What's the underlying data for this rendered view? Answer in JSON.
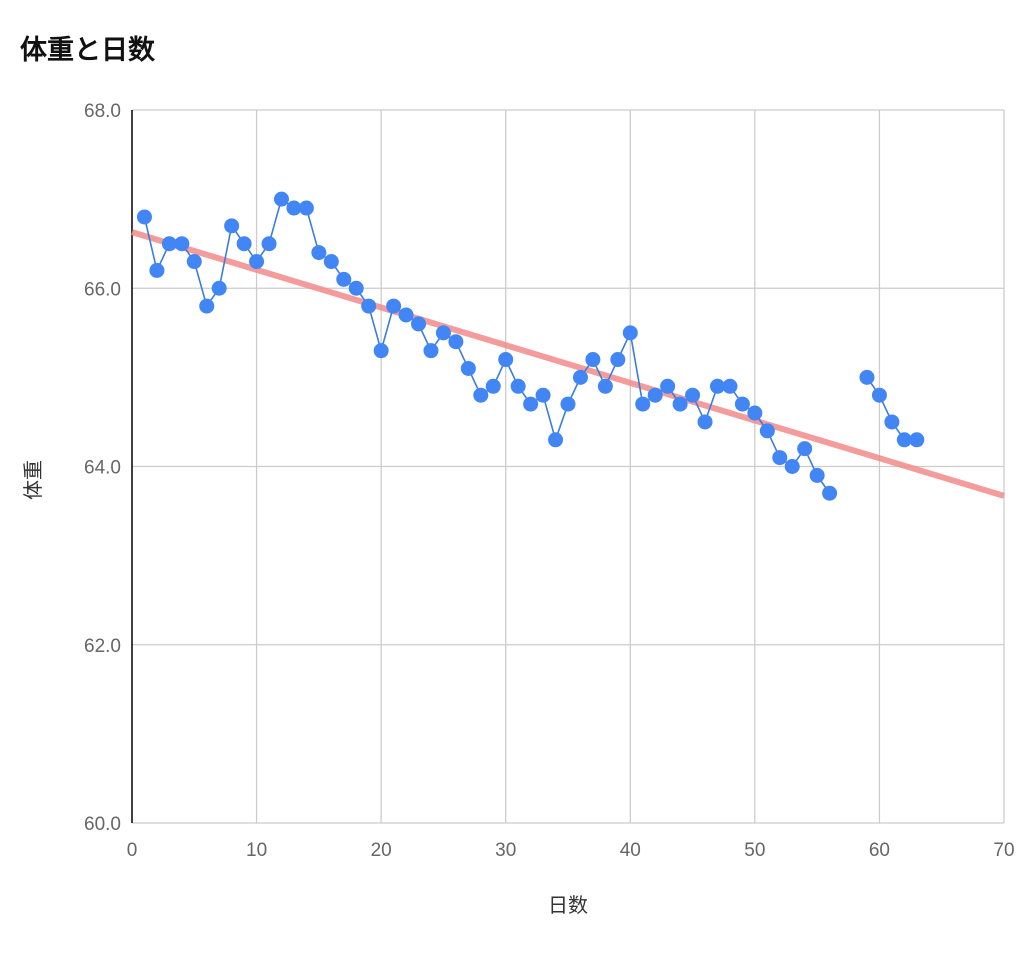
{
  "chart_data": {
    "type": "scatter",
    "title": "体重と日数",
    "xlabel": "日数",
    "ylabel": "体重",
    "xlim": [
      0,
      70
    ],
    "ylim": [
      60.0,
      68.0
    ],
    "x_ticks": [
      "0",
      "10",
      "20",
      "30",
      "40",
      "50",
      "60",
      "70"
    ],
    "y_ticks": [
      "60.0",
      "62.0",
      "64.0",
      "66.0",
      "68.0"
    ],
    "grid": true,
    "colors": {
      "points": "#4285f4",
      "line": "#3b7ddd",
      "trendline": "#f28b8b",
      "grid": "#cccccc",
      "axis": "#000000"
    },
    "series": [
      {
        "points": [
          [
            1,
            66.8
          ],
          [
            2,
            66.2
          ],
          [
            3,
            66.5
          ],
          [
            4,
            66.5
          ],
          [
            5,
            66.3
          ],
          [
            6,
            65.8
          ],
          [
            7,
            66.0
          ],
          [
            8,
            66.7
          ],
          [
            9,
            66.5
          ],
          [
            10,
            66.3
          ],
          [
            11,
            66.5
          ],
          [
            12,
            67.0
          ],
          [
            13,
            66.9
          ],
          [
            14,
            66.9
          ],
          [
            15,
            66.4
          ],
          [
            16,
            66.3
          ],
          [
            17,
            66.1
          ],
          [
            18,
            66.0
          ],
          [
            19,
            65.8
          ],
          [
            20,
            65.3
          ],
          [
            21,
            65.8
          ],
          [
            22,
            65.7
          ],
          [
            23,
            65.6
          ],
          [
            24,
            65.3
          ],
          [
            25,
            65.5
          ],
          [
            26,
            65.4
          ],
          [
            27,
            65.1
          ],
          [
            28,
            64.8
          ],
          [
            29,
            64.9
          ],
          [
            30,
            65.2
          ],
          [
            31,
            64.9
          ],
          [
            32,
            64.7
          ],
          [
            33,
            64.8
          ],
          [
            34,
            64.3
          ],
          [
            35,
            64.7
          ],
          [
            36,
            65.0
          ],
          [
            37,
            65.2
          ],
          [
            38,
            64.9
          ],
          [
            39,
            65.2
          ],
          [
            40,
            65.5
          ],
          [
            41,
            64.7
          ],
          [
            42,
            64.8
          ],
          [
            43,
            64.9
          ],
          [
            44,
            64.7
          ],
          [
            45,
            64.8
          ],
          [
            46,
            64.5
          ],
          [
            47,
            64.9
          ],
          [
            48,
            64.9
          ],
          [
            49,
            64.7
          ],
          [
            50,
            64.6
          ],
          [
            51,
            64.4
          ],
          [
            52,
            64.1
          ],
          [
            53,
            64.0
          ],
          [
            54,
            64.2
          ],
          [
            55,
            63.9
          ],
          [
            56,
            63.7
          ],
          [
            59,
            65.0
          ],
          [
            60,
            64.8
          ],
          [
            61,
            64.5
          ],
          [
            62,
            64.3
          ],
          [
            63,
            64.3
          ]
        ]
      }
    ],
    "trendline": {
      "type": "linear",
      "from": [
        0,
        66.63
      ],
      "to": [
        70,
        63.67
      ]
    }
  }
}
